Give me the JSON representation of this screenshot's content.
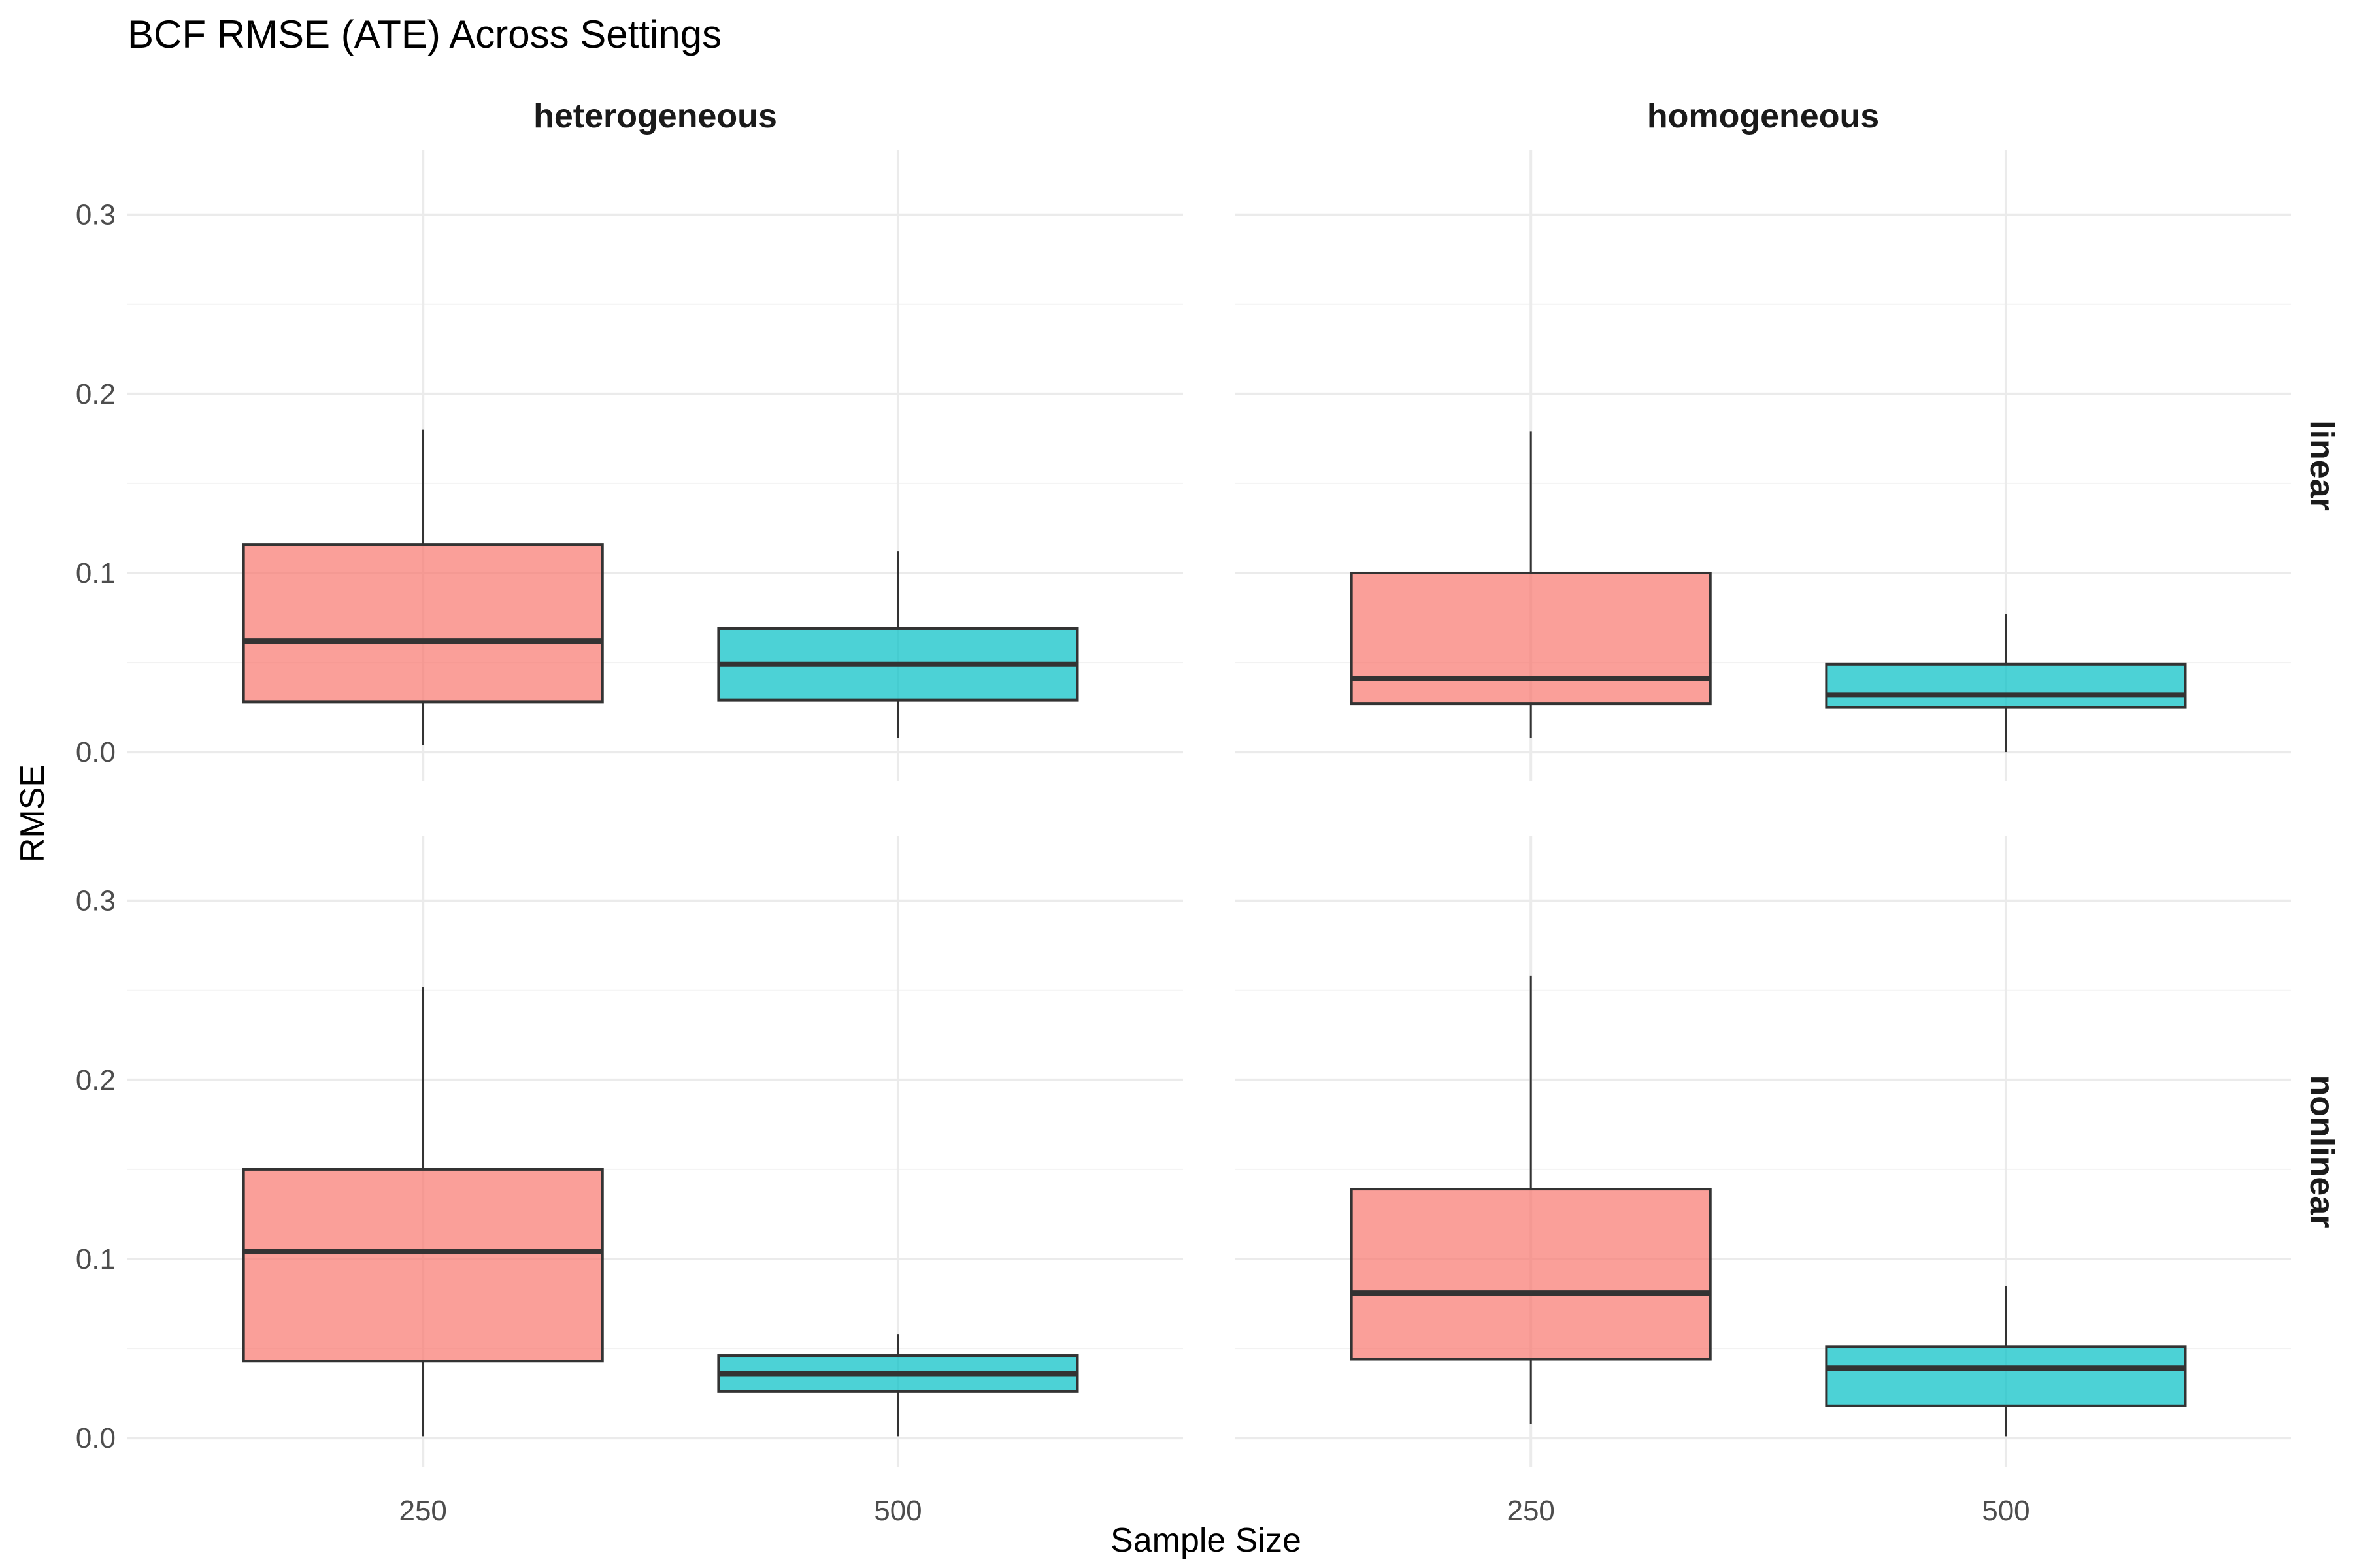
{
  "chart_data": {
    "type": "boxplot",
    "title": "BCF RMSE (ATE) Across Settings",
    "xlabel": "Sample Size",
    "ylabel": "RMSE",
    "categories": [
      "250",
      "500"
    ],
    "ylim": [
      -0.016,
      0.336
    ],
    "yticks": [
      0.0,
      0.1,
      0.2,
      0.3
    ],
    "ytick_labels": [
      "0.0",
      "0.1",
      "0.2",
      "0.3"
    ],
    "grid": true,
    "legend": "none",
    "colors": {
      "250": "#F8766D",
      "500": "#00BFC4"
    },
    "col_facets": [
      "heterogeneous",
      "homogeneous"
    ],
    "row_facets": [
      "linear",
      "nonlinear"
    ],
    "panels": [
      {
        "col": "heterogeneous",
        "row": "linear",
        "boxes": [
          {
            "x": "250",
            "min": 0.004,
            "q1": 0.028,
            "median": 0.062,
            "q3": 0.116,
            "max": 0.18
          },
          {
            "x": "500",
            "min": 0.008,
            "q1": 0.029,
            "median": 0.049,
            "q3": 0.069,
            "max": 0.112
          }
        ]
      },
      {
        "col": "homogeneous",
        "row": "linear",
        "boxes": [
          {
            "x": "250",
            "min": 0.008,
            "q1": 0.027,
            "median": 0.041,
            "q3": 0.1,
            "max": 0.179
          },
          {
            "x": "500",
            "min": 0.0,
            "q1": 0.025,
            "median": 0.032,
            "q3": 0.049,
            "max": 0.077
          }
        ]
      },
      {
        "col": "heterogeneous",
        "row": "nonlinear",
        "boxes": [
          {
            "x": "250",
            "min": 0.001,
            "q1": 0.043,
            "median": 0.104,
            "q3": 0.15,
            "max": 0.252
          },
          {
            "x": "500",
            "min": 0.001,
            "q1": 0.026,
            "median": 0.036,
            "q3": 0.046,
            "max": 0.058
          }
        ]
      },
      {
        "col": "homogeneous",
        "row": "nonlinear",
        "boxes": [
          {
            "x": "250",
            "min": 0.008,
            "q1": 0.044,
            "median": 0.081,
            "q3": 0.139,
            "max": 0.258
          },
          {
            "x": "500",
            "min": 0.001,
            "q1": 0.018,
            "median": 0.039,
            "q3": 0.051,
            "max": 0.085
          }
        ]
      }
    ]
  }
}
